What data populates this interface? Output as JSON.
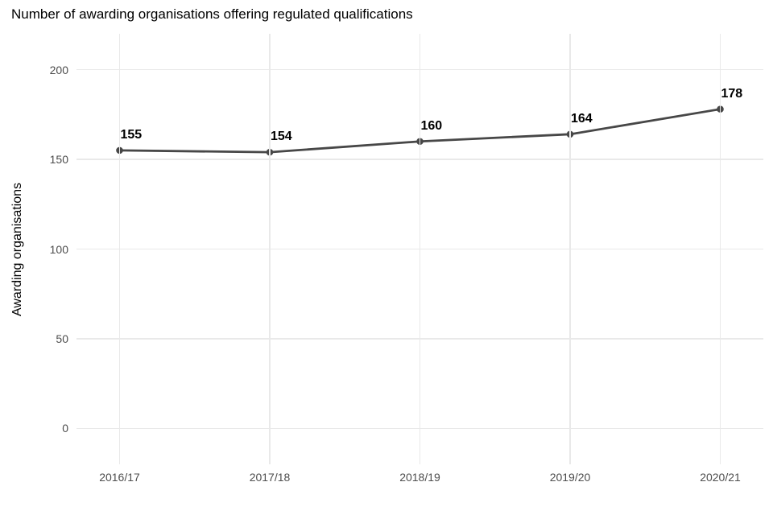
{
  "chart_data": {
    "type": "line",
    "title": "Number of awarding organisations offering regulated qualifications",
    "xlabel": "",
    "ylabel": "Awarding organisations",
    "categories": [
      "2016/17",
      "2017/18",
      "2018/19",
      "2019/20",
      "2020/21"
    ],
    "series": [
      {
        "name": "Awarding organisations",
        "values": [
          155,
          154,
          160,
          164,
          178
        ],
        "point_labels": [
          "155",
          "154",
          "160",
          "164",
          "178"
        ]
      }
    ],
    "yticks": [
      0,
      50,
      100,
      150,
      200
    ],
    "ylim": [
      -20,
      220
    ],
    "grid": true,
    "legend_position": "none",
    "colors": {
      "line": "#474747",
      "point": "#474747",
      "grid": "#e9e9e9",
      "tick_label": "#4d4d4d",
      "title": "#000000",
      "data_label": "#000000",
      "background": "#ffffff"
    }
  }
}
